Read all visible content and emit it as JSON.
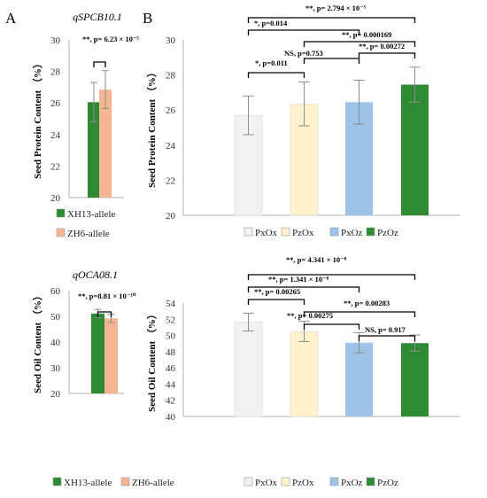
{
  "panel_labels": {
    "a": "A",
    "b": "B"
  },
  "chart_data": [
    {
      "id": "A1",
      "type": "bar",
      "title": "qSPCB10.1",
      "ylabel": "Seed Protein Content （%）",
      "ylim": [
        20,
        30
      ],
      "yticks": [
        20,
        22,
        24,
        26,
        28,
        30
      ],
      "grid": false,
      "legend_position": "bottom",
      "categories": [
        "XH13-allele",
        "ZH6-allele"
      ],
      "values": [
        26.05,
        26.85
      ],
      "errors": [
        1.25,
        1.2
      ],
      "colors": [
        "#2e8b34",
        "#f6b592"
      ],
      "significance": [
        {
          "from": 0,
          "to": 1,
          "label": "**, p= 6.23 × 10⁻⁵"
        }
      ]
    },
    {
      "id": "B1",
      "type": "bar",
      "ylabel": "Seed Protein Content （%）",
      "ylim": [
        20,
        30
      ],
      "yticks": [
        20,
        22,
        24,
        26,
        28,
        30
      ],
      "grid": false,
      "legend_position": "bottom",
      "categories": [
        "PxOx",
        "PzOx",
        "PxOz",
        "PzOz"
      ],
      "values": [
        25.7,
        26.35,
        26.45,
        27.45
      ],
      "errors": [
        1.1,
        1.25,
        1.25,
        1.0
      ],
      "colors": [
        "#f2f2f2",
        "#fff2cc",
        "#9dc3e6",
        "#2e8b34"
      ],
      "significance": [
        {
          "from": 0,
          "to": 1,
          "label": "*, p=0.011"
        },
        {
          "from": 1,
          "to": 2,
          "label": "NS, p=0.753"
        },
        {
          "from": 2,
          "to": 3,
          "label": "**, p= 0.00272"
        },
        {
          "from": 1,
          "to": 3,
          "label": "**, p= 0.000169"
        },
        {
          "from": 0,
          "to": 2,
          "label": "*, p=0.014"
        },
        {
          "from": 0,
          "to": 3,
          "label": "**, p= 2.794 × 10⁻⁵"
        }
      ]
    },
    {
      "id": "A2",
      "type": "bar",
      "title": "qOCA08.1",
      "ylabel": "Seed Oil Content （%）",
      "ylim": [
        20,
        60
      ],
      "yticks": [
        20,
        30,
        40,
        50,
        60
      ],
      "grid": false,
      "legend_position": "bottom",
      "categories": [
        "XH13-allele",
        "ZH6-allele"
      ],
      "values": [
        51.1,
        49.2
      ],
      "errors": [
        1.6,
        1.6
      ],
      "colors": [
        "#2e8b34",
        "#f6b592"
      ],
      "significance": [
        {
          "from": 0,
          "to": 1,
          "label": "**, p=8.81 × 10⁻¹⁰"
        }
      ]
    },
    {
      "id": "B2",
      "type": "bar",
      "ylabel": "Seed Oil Content （%）",
      "ylim": [
        40,
        54
      ],
      "yticks": [
        40,
        42,
        44,
        46,
        48,
        50,
        52,
        54
      ],
      "grid": false,
      "legend_position": "bottom",
      "categories": [
        "PxOx",
        "PzOx",
        "PxOz",
        "PzOz"
      ],
      "values": [
        51.65,
        50.5,
        49.1,
        49.05
      ],
      "errors": [
        1.1,
        1.25,
        1.25,
        1.0
      ],
      "colors": [
        "#f2f2f2",
        "#fff2cc",
        "#9dc3e6",
        "#2e8b34"
      ],
      "significance": [
        {
          "from": 2,
          "to": 3,
          "label": "NS, p= 0.917"
        },
        {
          "from": 1,
          "to": 2,
          "label": "**, p= 0.00275"
        },
        {
          "from": 1,
          "to": 3,
          "label": "**, p= 0.00283"
        },
        {
          "from": 0,
          "to": 1,
          "label": "**, p= 0.00265"
        },
        {
          "from": 0,
          "to": 2,
          "label": "**, p= 1.341 × 10⁻⁸"
        },
        {
          "from": 0,
          "to": 3,
          "label": "**, p= 4.341 × 10⁻⁸"
        }
      ]
    }
  ]
}
